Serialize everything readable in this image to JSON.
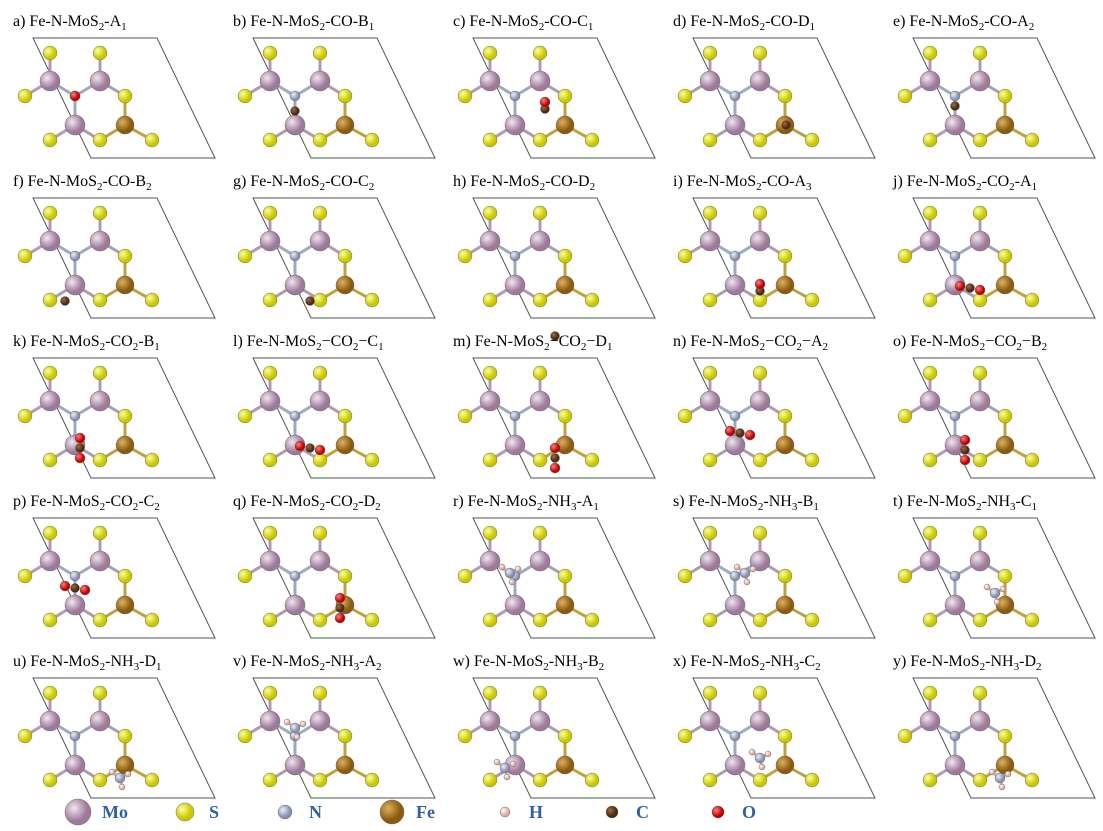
{
  "panels": [
    {
      "label": [
        "a) Fe-N-MoS",
        "2",
        "-A",
        "1"
      ]
    },
    {
      "label": [
        "b) Fe-N-MoS",
        "2",
        "-CO-B",
        "1"
      ]
    },
    {
      "label": [
        "c) Fe-N-MoS",
        "2",
        "-CO-C",
        "1"
      ]
    },
    {
      "label": [
        "d) Fe-N-MoS",
        "2",
        "-CO-D",
        "1"
      ]
    },
    {
      "label": [
        "e) Fe-N-MoS",
        "2",
        "-CO-A",
        "2"
      ]
    },
    {
      "label": [
        "f) Fe-N-MoS",
        "2",
        "-CO-B",
        "2"
      ]
    },
    {
      "label": [
        "g) Fe-N-MoS",
        "2",
        "-CO-C",
        "2"
      ]
    },
    {
      "label": [
        "h) Fe-N-MoS",
        "2",
        "-CO-D",
        "2"
      ]
    },
    {
      "label": [
        "i) Fe-N-MoS",
        "2",
        "-CO-A",
        "3"
      ]
    },
    {
      "label": [
        "j) Fe-N-MoS",
        "2",
        "-CO",
        "2",
        "-A",
        "1"
      ]
    },
    {
      "label": [
        "k) Fe-N-MoS",
        "2",
        "-CO",
        "2",
        "-B",
        "1"
      ]
    },
    {
      "label": [
        "l) Fe-N-MoS",
        "2",
        "−CO",
        "2",
        "−C",
        "1"
      ]
    },
    {
      "label": [
        "m) Fe-N-MoS",
        "2",
        "−CO",
        "2",
        "−D",
        "1"
      ]
    },
    {
      "label": [
        "n) Fe-N-MoS",
        "2",
        "−CO",
        "2",
        "−A",
        "2"
      ]
    },
    {
      "label": [
        "o) Fe-N-MoS",
        "2",
        "−CO",
        "2",
        "−B",
        "2"
      ]
    },
    {
      "label": [
        "p) Fe-N-MoS",
        "2",
        "-CO",
        "2",
        "-C",
        "2"
      ]
    },
    {
      "label": [
        "q) Fe-N-MoS",
        "2",
        "-CO",
        "2",
        "-D",
        "2"
      ]
    },
    {
      "label": [
        "r) Fe-N-MoS",
        "2",
        "-NH",
        "3",
        "-A",
        "1"
      ]
    },
    {
      "label": [
        "s) Fe-N-MoS",
        "2",
        "-NH",
        "3",
        "-B",
        "1"
      ]
    },
    {
      "label": [
        "t) Fe-N-MoS",
        "2",
        "-NH",
        "3",
        "-C",
        "1"
      ]
    },
    {
      "label": [
        "u) Fe-N-MoS",
        "2",
        "-NH",
        "3",
        "-D",
        "1"
      ]
    },
    {
      "label": [
        "v) Fe-N-MoS",
        "2",
        "-NH",
        "3",
        "-A",
        "2"
      ]
    },
    {
      "label": [
        "w) Fe-N-MoS",
        "2",
        "-NH",
        "3",
        "-B",
        "2"
      ]
    },
    {
      "label": [
        "x) Fe-N-MoS",
        "2",
        "-NH",
        "3",
        "-C",
        "2"
      ]
    },
    {
      "label": [
        "y) Fe-N-MoS",
        "2",
        "-NH",
        "3",
        "-D",
        "2"
      ]
    }
  ],
  "legend": [
    "Mo",
    "S",
    "N",
    "Fe",
    "H",
    "C",
    "O"
  ]
}
